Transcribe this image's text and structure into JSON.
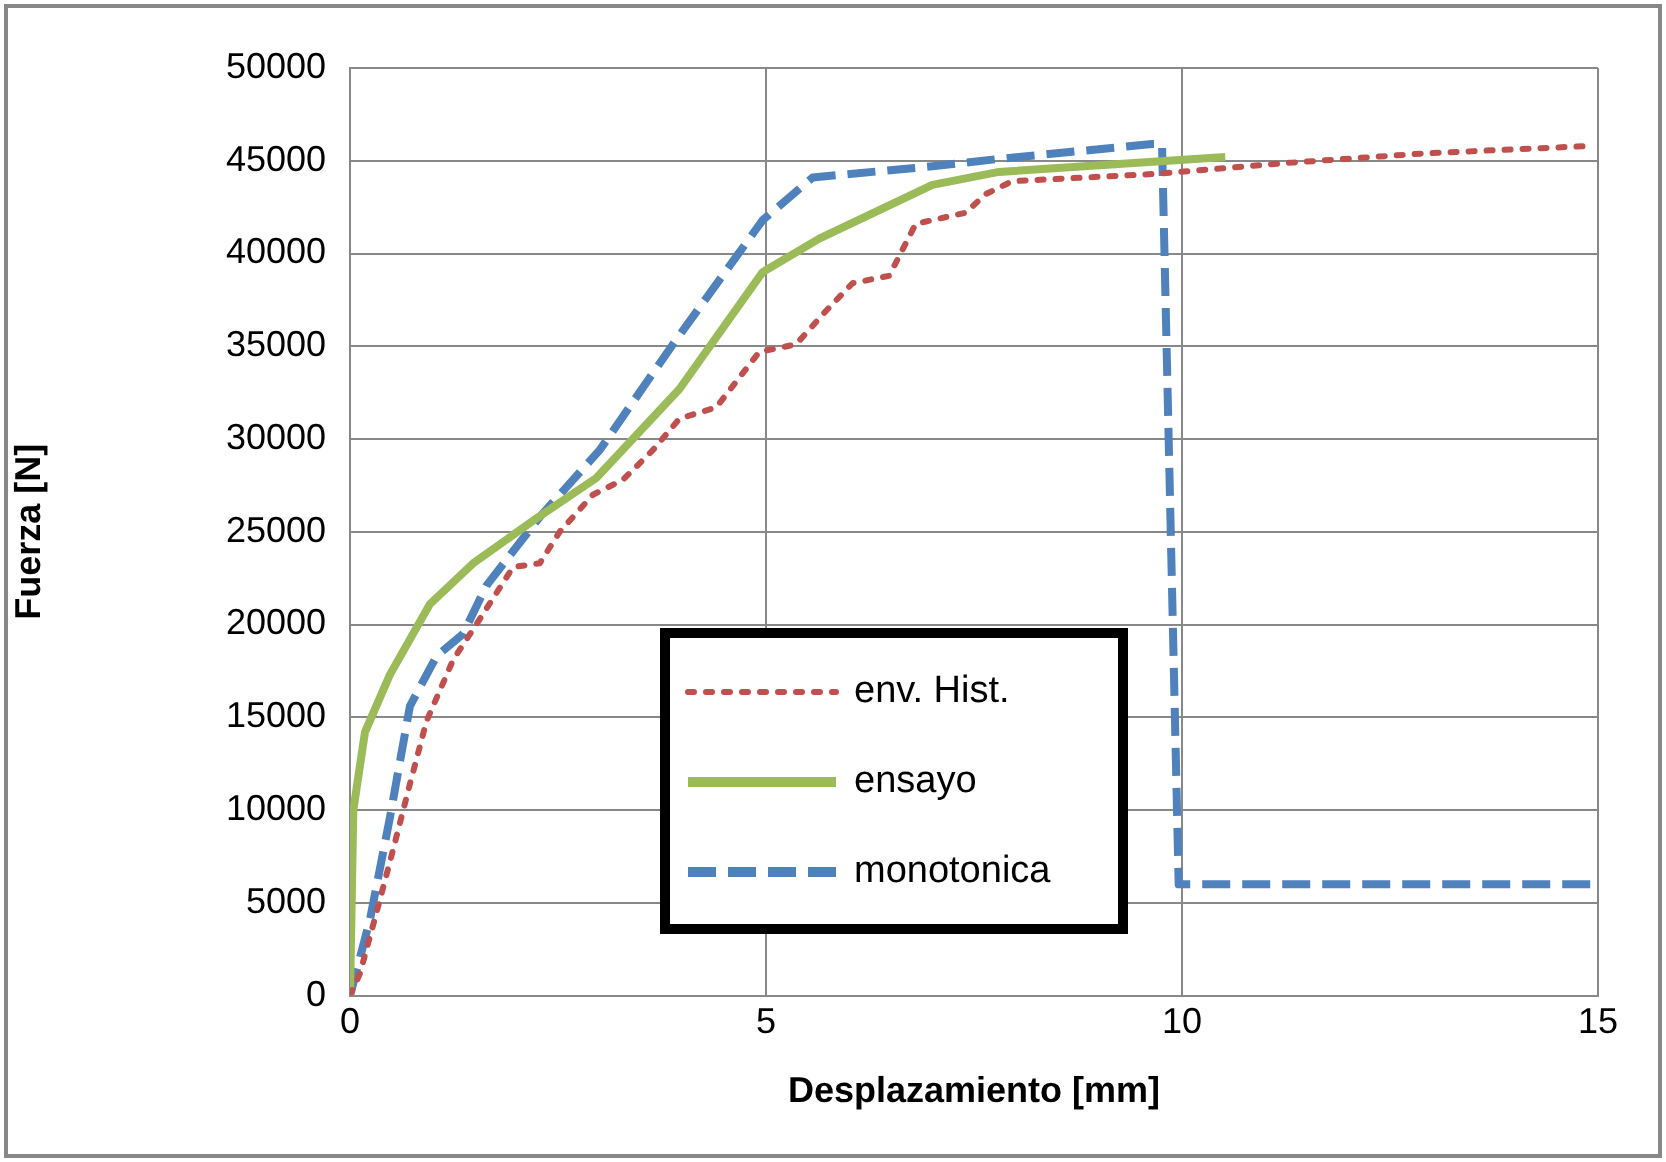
{
  "chart_data": {
    "type": "line",
    "xlabel": "Desplazamiento [mm]",
    "ylabel": "Fuerza [N]",
    "xlim": [
      0,
      15
    ],
    "xticks": [
      0,
      5,
      10,
      15
    ],
    "ylim": [
      0,
      50000
    ],
    "yticks": [
      0,
      5000,
      10000,
      15000,
      20000,
      25000,
      30000,
      35000,
      40000,
      45000,
      50000
    ],
    "grid": true,
    "legend": "bottom",
    "marker": "none",
    "series": [
      {
        "name": "env. Hist.",
        "color": "#c0504d",
        "line_style": "dotted",
        "x": [
          0,
          0.12,
          0.32,
          0.52,
          0.72,
          0.92,
          1.24,
          1.56,
          1.96,
          2.28,
          2.52,
          2.92,
          3.28,
          3.64,
          3.96,
          4.4,
          4.92,
          5.36,
          5.72,
          6.04,
          6.48,
          6.8,
          7.4,
          7.64,
          7.96,
          9.72,
          11.32,
          12.92,
          14.92
        ],
        "values": [
          0,
          1200,
          4500,
          7900,
          11400,
          14800,
          18100,
          20300,
          23100,
          23300,
          25000,
          27000,
          27800,
          29400,
          31100,
          31700,
          34700,
          35100,
          36900,
          38400,
          38800,
          41600,
          42200,
          43200,
          43900,
          44300,
          44900,
          45400,
          45800
        ]
      },
      {
        "name": "ensayo",
        "color": "#9bbb59",
        "line_style": "solid",
        "x": [
          0,
          0.04,
          0.18,
          0.48,
          0.96,
          1.48,
          2.2,
          2.96,
          3.96,
          4.96,
          5.64,
          7.0,
          7.8,
          10.52
        ],
        "values": [
          0,
          10000,
          14200,
          17300,
          21100,
          23300,
          25600,
          27900,
          32700,
          39000,
          40800,
          43700,
          44400,
          45200
        ]
      },
      {
        "name": "monotonica",
        "color": "#4f81bd",
        "line_style": "dashed",
        "x": [
          0,
          0.24,
          0.48,
          0.72,
          1.04,
          1.36,
          1.64,
          2.28,
          3.0,
          3.88,
          4.96,
          5.56,
          7.0,
          7.8,
          9.64,
          9.76,
          9.96,
          15
        ],
        "values": [
          0,
          4100,
          9600,
          15600,
          18300,
          19500,
          22100,
          25800,
          29400,
          35100,
          41800,
          44100,
          44700,
          45100,
          45900,
          45900,
          6000,
          6000
        ]
      }
    ]
  }
}
